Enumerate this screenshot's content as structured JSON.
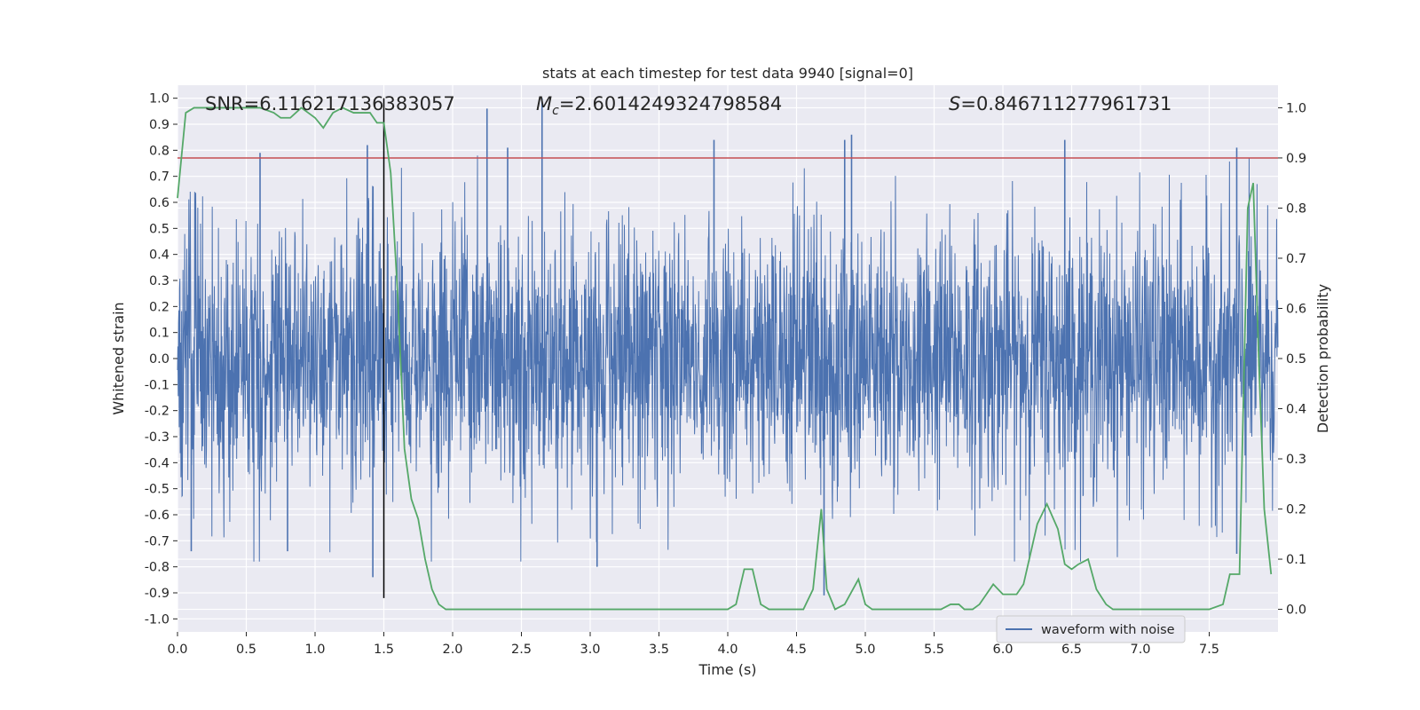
{
  "chart_data": {
    "type": "line",
    "title": "stats at each timestep for test data 9940 [signal=0]",
    "xlabel": "Time (s)",
    "ylabel_left": "Whitened strain",
    "ylabel_right": "Detection probability",
    "xlim": [
      0.0,
      8.0
    ],
    "ylim_left": [
      -1.05,
      1.05
    ],
    "ylim_right": [
      -0.045,
      1.045
    ],
    "x_ticks": [
      "0.0",
      "0.5",
      "1.0",
      "1.5",
      "2.0",
      "2.5",
      "3.0",
      "3.5",
      "4.0",
      "4.5",
      "5.0",
      "5.5",
      "6.0",
      "6.5",
      "7.0",
      "7.5"
    ],
    "y_left_ticks": [
      "-1.0",
      "-0.9",
      "-0.8",
      "-0.7",
      "-0.6",
      "-0.5",
      "-0.4",
      "-0.3",
      "-0.2",
      "-0.1",
      "0.0",
      "0.1",
      "0.2",
      "0.3",
      "0.4",
      "0.5",
      "0.6",
      "0.7",
      "0.8",
      "0.9",
      "1.0"
    ],
    "y_right_ticks": [
      "0.0",
      "0.1",
      "0.2",
      "0.3",
      "0.4",
      "0.5",
      "0.6",
      "0.7",
      "0.8",
      "0.9",
      "1.0"
    ],
    "grid": true,
    "legend_position": "lower-right",
    "annotations": {
      "snr_text": "SNR=6.116217136383057",
      "mc_symbol": "M",
      "mc_subscript": "c",
      "mc_value": "=2.6014249324798584",
      "s_symbol": "S",
      "s_value": "=0.846711277961731"
    },
    "threshold": {
      "right_axis_value": 0.9,
      "color": "#c44e52"
    },
    "vertical_marker": {
      "x": 1.5,
      "y_from": -0.92,
      "y_to": 1.0,
      "color": "#000000"
    },
    "series": [
      {
        "name": "waveform with noise",
        "axis": "left",
        "color": "#4c72b0",
        "kind": "noisy_waveform",
        "approx_envelope": 0.5,
        "peaks": [
          {
            "x": 2.25,
            "y": 0.96
          },
          {
            "x": 2.65,
            "y": 1.0
          },
          {
            "x": 1.38,
            "y": 0.82
          },
          {
            "x": 0.6,
            "y": 0.79
          },
          {
            "x": 2.4,
            "y": 0.81
          },
          {
            "x": 3.9,
            "y": 0.84
          },
          {
            "x": 4.85,
            "y": 0.84
          },
          {
            "x": 4.9,
            "y": 0.86
          },
          {
            "x": 6.45,
            "y": 0.84
          },
          {
            "x": 7.7,
            "y": 0.81
          },
          {
            "x": 1.42,
            "y": -0.84
          },
          {
            "x": 3.05,
            "y": -0.8
          },
          {
            "x": 4.7,
            "y": -0.91
          },
          {
            "x": 0.8,
            "y": -0.74
          },
          {
            "x": 0.1,
            "y": -0.74
          },
          {
            "x": 7.7,
            "y": -0.75
          }
        ]
      },
      {
        "name": "",
        "axis": "right",
        "color": "#55a868",
        "x": [
          0.0,
          0.06,
          0.12,
          0.2,
          0.3,
          0.4,
          0.5,
          0.6,
          0.7,
          0.75,
          0.82,
          0.9,
          0.95,
          1.0,
          1.06,
          1.13,
          1.2,
          1.28,
          1.35,
          1.4,
          1.45,
          1.5,
          1.55,
          1.6,
          1.65,
          1.7,
          1.75,
          1.8,
          1.85,
          1.9,
          1.95,
          2.0,
          2.1,
          2.2,
          2.4,
          2.6,
          2.8,
          3.0,
          3.2,
          3.4,
          3.6,
          3.8,
          3.9,
          4.0,
          4.06,
          4.12,
          4.18,
          4.24,
          4.3,
          4.38,
          4.45,
          4.5,
          4.55,
          4.62,
          4.68,
          4.72,
          4.78,
          4.85,
          4.95,
          5.0,
          5.05,
          5.15,
          5.3,
          5.45,
          5.55,
          5.62,
          5.68,
          5.72,
          5.78,
          5.83,
          5.88,
          5.93,
          6.0,
          6.05,
          6.1,
          6.15,
          6.25,
          6.32,
          6.4,
          6.45,
          6.5,
          6.55,
          6.62,
          6.68,
          6.75,
          6.8,
          6.9,
          7.0,
          7.2,
          7.35,
          7.5,
          7.6,
          7.65,
          7.72,
          7.78,
          7.82,
          7.86,
          7.9,
          7.95
        ],
        "values": [
          0.82,
          0.99,
          1.0,
          1.0,
          1.0,
          1.0,
          1.0,
          1.0,
          0.99,
          0.98,
          0.98,
          1.0,
          0.99,
          0.98,
          0.96,
          0.99,
          1.0,
          0.99,
          0.99,
          0.99,
          0.97,
          0.97,
          0.87,
          0.63,
          0.32,
          0.22,
          0.18,
          0.1,
          0.04,
          0.01,
          0.0,
          0.0,
          0.0,
          0.0,
          0.0,
          0.0,
          0.0,
          0.0,
          0.0,
          0.0,
          0.0,
          0.0,
          0.0,
          0.0,
          0.01,
          0.08,
          0.08,
          0.01,
          0.0,
          0.0,
          0.0,
          0.0,
          0.0,
          0.04,
          0.2,
          0.04,
          0.0,
          0.01,
          0.06,
          0.01,
          0.0,
          0.0,
          0.0,
          0.0,
          0.0,
          0.01,
          0.01,
          0.0,
          0.0,
          0.01,
          0.03,
          0.05,
          0.03,
          0.03,
          0.03,
          0.05,
          0.17,
          0.21,
          0.16,
          0.09,
          0.08,
          0.09,
          0.1,
          0.04,
          0.01,
          0.0,
          0.0,
          0.0,
          0.0,
          0.0,
          0.0,
          0.01,
          0.07,
          0.07,
          0.8,
          0.85,
          0.5,
          0.2,
          0.07
        ]
      }
    ],
    "legend": {
      "entries": [
        "waveform with noise"
      ]
    }
  }
}
